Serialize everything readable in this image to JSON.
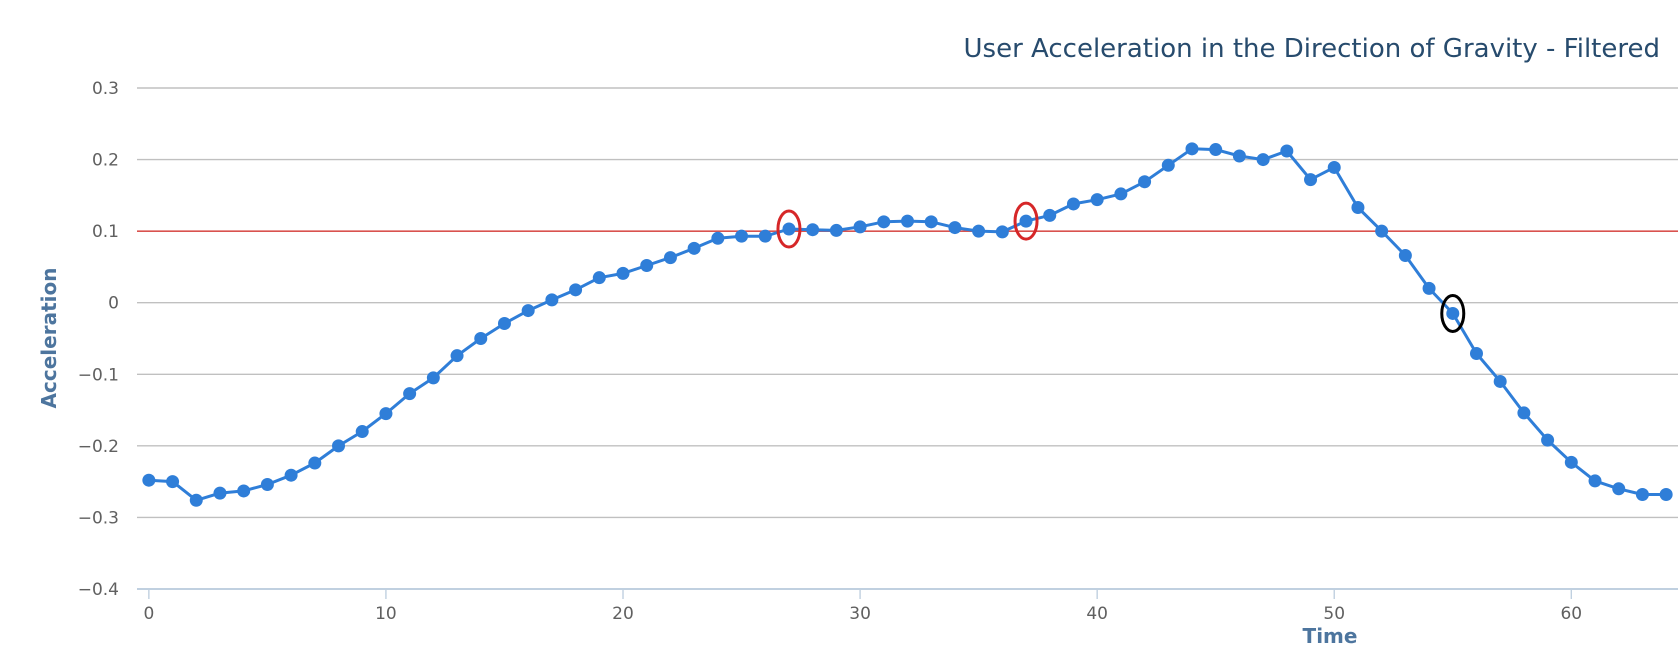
{
  "chart_data": {
    "type": "line",
    "title": "User Acceleration in the Direction of Gravity - Filtered",
    "xlabel": "Time",
    "ylabel": "Acceleration",
    "xlim": [
      -0.5,
      64.5
    ],
    "ylim": [
      -0.4,
      0.3
    ],
    "x_ticks": [
      "0",
      "10",
      "20",
      "30",
      "40",
      "50",
      "60"
    ],
    "y_ticks": [
      "0.3",
      "0.2",
      "0.1",
      "0",
      "-0.1",
      "-0.2",
      "-0.3",
      "-0.4"
    ],
    "grid": true,
    "reference_line": {
      "y": 0.1,
      "color": "#d9534f"
    },
    "series": [
      {
        "color": "#2f7ed8",
        "x": [
          0,
          1,
          2,
          3,
          4,
          5,
          6,
          7,
          8,
          9,
          10,
          11,
          12,
          13,
          14,
          15,
          16,
          17,
          18,
          19,
          20,
          21,
          22,
          23,
          24,
          25,
          26,
          27,
          28,
          29,
          30,
          31,
          32,
          33,
          34,
          35,
          36,
          37,
          38,
          39,
          40,
          41,
          42,
          43,
          44,
          45,
          46,
          47,
          48,
          49,
          50,
          51,
          52,
          53,
          54,
          55,
          56,
          57,
          58,
          59,
          60,
          61,
          62,
          63,
          64
        ],
        "y": [
          -0.248,
          -0.25,
          -0.276,
          -0.266,
          -0.263,
          -0.254,
          -0.241,
          -0.224,
          -0.2,
          -0.18,
          -0.155,
          -0.127,
          -0.105,
          -0.074,
          -0.05,
          -0.029,
          -0.011,
          0.004,
          0.018,
          0.035,
          0.041,
          0.052,
          0.063,
          0.076,
          0.09,
          0.093,
          0.093,
          0.103,
          0.102,
          0.101,
          0.106,
          0.113,
          0.114,
          0.113,
          0.105,
          0.1,
          0.099,
          0.114,
          0.122,
          0.138,
          0.144,
          0.152,
          0.169,
          0.192,
          0.215,
          0.214,
          0.205,
          0.2,
          0.212,
          0.172,
          0.189,
          0.133,
          0.1,
          0.066,
          0.02,
          -0.015,
          -0.071,
          -0.11,
          -0.154,
          -0.192,
          -0.223,
          -0.249,
          -0.26,
          -0.268,
          -0.268
        ]
      }
    ],
    "highlights": [
      {
        "x": 27,
        "color": "#d62728"
      },
      {
        "x": 37,
        "color": "#d62728"
      },
      {
        "x": 55,
        "color": "#000000"
      }
    ]
  }
}
